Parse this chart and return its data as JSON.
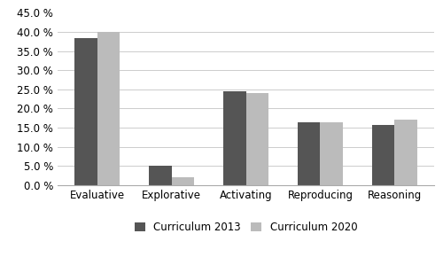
{
  "categories": [
    "Evaluative",
    "Explorative",
    "Activating",
    "Reproducing",
    "Reasoning"
  ],
  "curriculum_2013": [
    0.385,
    0.05,
    0.245,
    0.165,
    0.157
  ],
  "curriculum_2020": [
    0.4,
    0.02,
    0.24,
    0.165,
    0.172
  ],
  "color_2013": "#555555",
  "color_2020": "#bbbbbb",
  "ylim": [
    0,
    0.45
  ],
  "yticks": [
    0.0,
    0.05,
    0.1,
    0.15,
    0.2,
    0.25,
    0.3,
    0.35,
    0.4,
    0.45
  ],
  "legend_labels": [
    "Curriculum 2013",
    "Curriculum 2020"
  ],
  "bar_width": 0.3,
  "background_color": "#ffffff"
}
